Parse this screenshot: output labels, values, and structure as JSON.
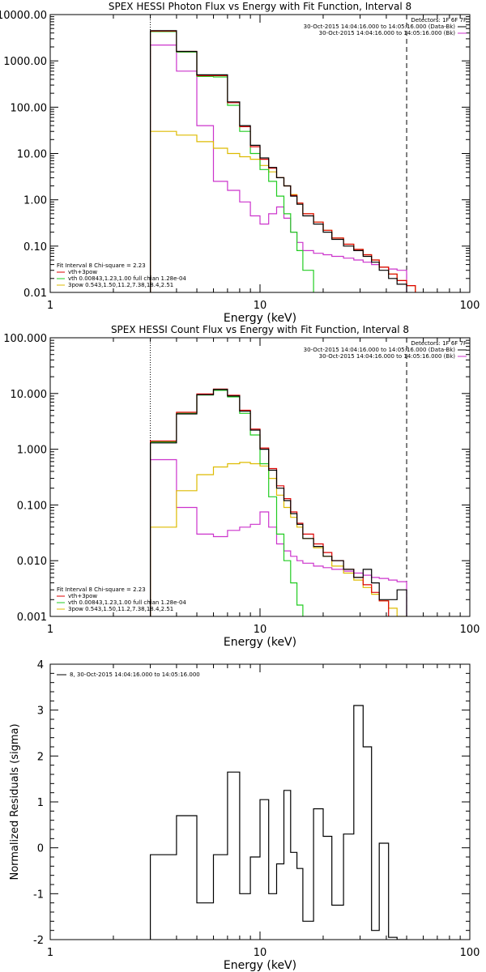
{
  "chart_data": [
    {
      "type": "line",
      "title": "SPEX HESSI Photon Flux vs Energy with Fit Function, Interval 8",
      "xlabel": "Energy (keV)",
      "ylabel": "",
      "xscale": "log",
      "yscale": "log",
      "xlim": [
        1,
        100
      ],
      "ylim": [
        0.01,
        10000
      ],
      "x_ticks": [
        "1",
        "10",
        "100"
      ],
      "y_ticks": [
        "10000.00",
        "1000.00",
        "100.00",
        "10.00",
        "1.00",
        "0.10",
        "0.01"
      ],
      "vlines": [
        {
          "x": 3,
          "style": "dotted"
        },
        {
          "x": 50,
          "style": "dashed"
        }
      ],
      "legend_top": {
        "header": "Detectors: 1F 6F 7F",
        "items": [
          {
            "label": "30-Oct-2015 14:04:16.000 to 14:05:16.000 (Data-Bk)",
            "color": "#000000"
          },
          {
            "label": "30-Oct-2015 14:04:16.000 to 14:05:16.000 (Bk)",
            "color": "#cc33cc"
          }
        ]
      },
      "legend_bottom": {
        "header": "Fit Interval 8   Chi-square = 2.23",
        "items": [
          {
            "label": "vth+3pow",
            "color": "#dd0000"
          },
          {
            "label": "vth 0.00843,1.23,1.00  full chian 1.28e-04",
            "color": "#22cc22"
          },
          {
            "label": "3pow 0.543,1.50,11.2,7.38,18.4,2.51",
            "color": "#ddbb00"
          }
        ]
      },
      "bin_edges": [
        3,
        4,
        5,
        6,
        7,
        8,
        9,
        10,
        11,
        12,
        13,
        14,
        15,
        16,
        18,
        20,
        22,
        25,
        28,
        31,
        34,
        37,
        41,
        45,
        50,
        55
      ],
      "series": [
        {
          "name": "Data-Bk",
          "color": "#000000",
          "values": [
            4500,
            1600,
            500,
            500,
            130,
            40,
            15,
            8,
            5,
            3,
            2,
            1.2,
            0.8,
            0.45,
            0.3,
            0.2,
            0.14,
            0.1,
            0.08,
            0.06,
            0.045,
            0.03,
            0.02,
            0.015
          ]
        },
        {
          "name": "vth+3pow",
          "color": "#dd0000",
          "values": [
            4400,
            1600,
            480,
            480,
            125,
            38,
            14,
            7.5,
            4.8,
            3,
            2,
            1.25,
            0.85,
            0.5,
            0.33,
            0.22,
            0.15,
            0.11,
            0.085,
            0.065,
            0.05,
            0.035,
            0.025,
            0.018,
            0.014
          ]
        },
        {
          "name": "vth",
          "color": "#22cc22",
          "values": [
            4300,
            1550,
            460,
            450,
            110,
            30,
            10,
            4.5,
            2.5,
            1.2,
            0.5,
            0.2,
            0.08,
            0.03
          ]
        },
        {
          "name": "3pow",
          "color": "#ddbb00",
          "values": [
            30,
            25,
            18,
            13,
            10,
            8.5,
            7.5,
            5.5,
            4.0,
            3.0,
            2.0,
            1.3,
            0.85,
            0.5,
            0.33,
            0.22,
            0.15,
            0.11,
            0.085,
            0.065,
            0.05,
            0.035,
            0.025,
            0.018,
            0.014
          ]
        },
        {
          "name": "Bk",
          "color": "#cc33cc",
          "values": [
            2200,
            600,
            40,
            2.5,
            1.6,
            0.9,
            0.45,
            0.3,
            0.5,
            0.7,
            0.4,
            0.2,
            0.12,
            0.08,
            0.07,
            0.065,
            0.06,
            0.055,
            0.05,
            0.045,
            0.04,
            0.035,
            0.032,
            0.03
          ]
        }
      ]
    },
    {
      "type": "line",
      "title": "SPEX HESSI Count Flux vs Energy with Fit Function, Interval 8",
      "xlabel": "Energy (keV)",
      "ylabel": "",
      "xscale": "log",
      "yscale": "log",
      "xlim": [
        1,
        100
      ],
      "ylim": [
        0.001,
        100
      ],
      "x_ticks": [
        "1",
        "10",
        "100"
      ],
      "y_ticks": [
        "100.000",
        "10.000",
        "1.000",
        "0.100",
        "0.010",
        "0.001"
      ],
      "vlines": [
        {
          "x": 3,
          "style": "dotted"
        },
        {
          "x": 50,
          "style": "dashed"
        }
      ],
      "legend_top": {
        "header": "Detectors: 1F 6F 7F",
        "items": [
          {
            "label": "30-Oct-2015 14:04:16.000 to 14:05:16.000 (Data-Bk)",
            "color": "#000000"
          },
          {
            "label": "30-Oct-2015 14:04:16.000 to 14:05:16.000 (Bk)",
            "color": "#cc33cc"
          }
        ]
      },
      "legend_bottom": {
        "header": "Fit Interval 8   Chi-square = 2.23",
        "items": [
          {
            "label": "vth+3pow",
            "color": "#dd0000"
          },
          {
            "label": "vth 0.00843,1.23,1.00  full chian 1.28e-04",
            "color": "#22cc22"
          },
          {
            "label": "3pow 0.543,1.50,11.2,7.38,18.4,2.51",
            "color": "#ddbb00"
          }
        ]
      },
      "bin_edges": [
        3,
        4,
        5,
        6,
        7,
        8,
        9,
        10,
        11,
        12,
        13,
        14,
        15,
        16,
        18,
        20,
        22,
        25,
        28,
        31,
        34,
        37,
        41,
        45,
        50,
        55,
        60,
        65,
        70
      ],
      "series": [
        {
          "name": "Data-Bk",
          "color": "#000000",
          "values": [
            1.3,
            4.3,
            9.5,
            11.8,
            9.0,
            4.8,
            2.2,
            1.0,
            0.42,
            0.2,
            0.12,
            0.07,
            0.045,
            0.025,
            0.018,
            0.012,
            0.01,
            0.007,
            0.005,
            0.007,
            0.004,
            0.002,
            0.002,
            0.003
          ]
        },
        {
          "name": "vth+3pow",
          "color": "#dd0000",
          "values": [
            1.4,
            4.6,
            9.8,
            12.0,
            9.3,
            5.0,
            2.3,
            1.05,
            0.45,
            0.22,
            0.13,
            0.075,
            0.047,
            0.03,
            0.02,
            0.014,
            0.01,
            0.007,
            0.005,
            0.0037,
            0.0027,
            0.0019
          ]
        },
        {
          "name": "vth",
          "color": "#22cc22",
          "values": [
            1.35,
            4.4,
            9.4,
            11.4,
            8.7,
            4.4,
            1.8,
            0.55,
            0.14,
            0.03,
            0.01,
            0.004,
            0.0016
          ]
        },
        {
          "name": "3pow",
          "color": "#ddbb00",
          "values": [
            0.04,
            0.18,
            0.35,
            0.48,
            0.55,
            0.58,
            0.55,
            0.5,
            0.3,
            0.15,
            0.09,
            0.06,
            0.04,
            0.025,
            0.017,
            0.012,
            0.008,
            0.006,
            0.0045,
            0.0033,
            0.0025,
            0.0019,
            0.0014,
            0.001
          ]
        },
        {
          "name": "Bk",
          "color": "#cc33cc",
          "values": [
            0.65,
            0.09,
            0.03,
            0.027,
            0.035,
            0.04,
            0.045,
            0.075,
            0.04,
            0.02,
            0.015,
            0.012,
            0.01,
            0.009,
            0.008,
            0.0075,
            0.007,
            0.0065,
            0.006,
            0.0055,
            0.005,
            0.0048,
            0.0045,
            0.0042
          ]
        }
      ]
    },
    {
      "type": "line",
      "title": "",
      "xlabel": "Energy (keV)",
      "ylabel": "Normalized Residuals (sigma)",
      "xscale": "log",
      "yscale": "linear",
      "xlim": [
        1,
        100
      ],
      "ylim": [
        -2,
        4
      ],
      "x_ticks": [
        "1",
        "10",
        "100"
      ],
      "y_ticks": [
        "4",
        "3",
        "2",
        "1",
        "0",
        "-1",
        "-2"
      ],
      "legend_top": {
        "header": "",
        "items": [
          {
            "label": "8, 30-Oct-2015 14:04:16.000 to 14:05:16.000",
            "color": "#000000"
          }
        ]
      },
      "bin_edges": [
        3,
        4,
        5,
        6,
        7,
        8,
        9,
        10,
        11,
        12,
        13,
        14,
        15,
        16,
        18,
        20,
        22,
        25,
        28,
        31,
        34,
        37,
        41,
        45,
        50
      ],
      "series": [
        {
          "name": "8, 30-Oct-2015 14:04:16.000 to 14:05:16.000",
          "color": "#000000",
          "values": [
            -0.15,
            0.7,
            -1.2,
            -0.15,
            1.65,
            -1.0,
            -0.2,
            1.05,
            -1.0,
            -0.35,
            1.25,
            -0.1,
            -0.45,
            -1.6,
            0.85,
            0.25,
            -1.25,
            0.3,
            3.1,
            2.2,
            -1.8,
            0.1,
            -1.95,
            -2.0
          ]
        }
      ]
    }
  ]
}
